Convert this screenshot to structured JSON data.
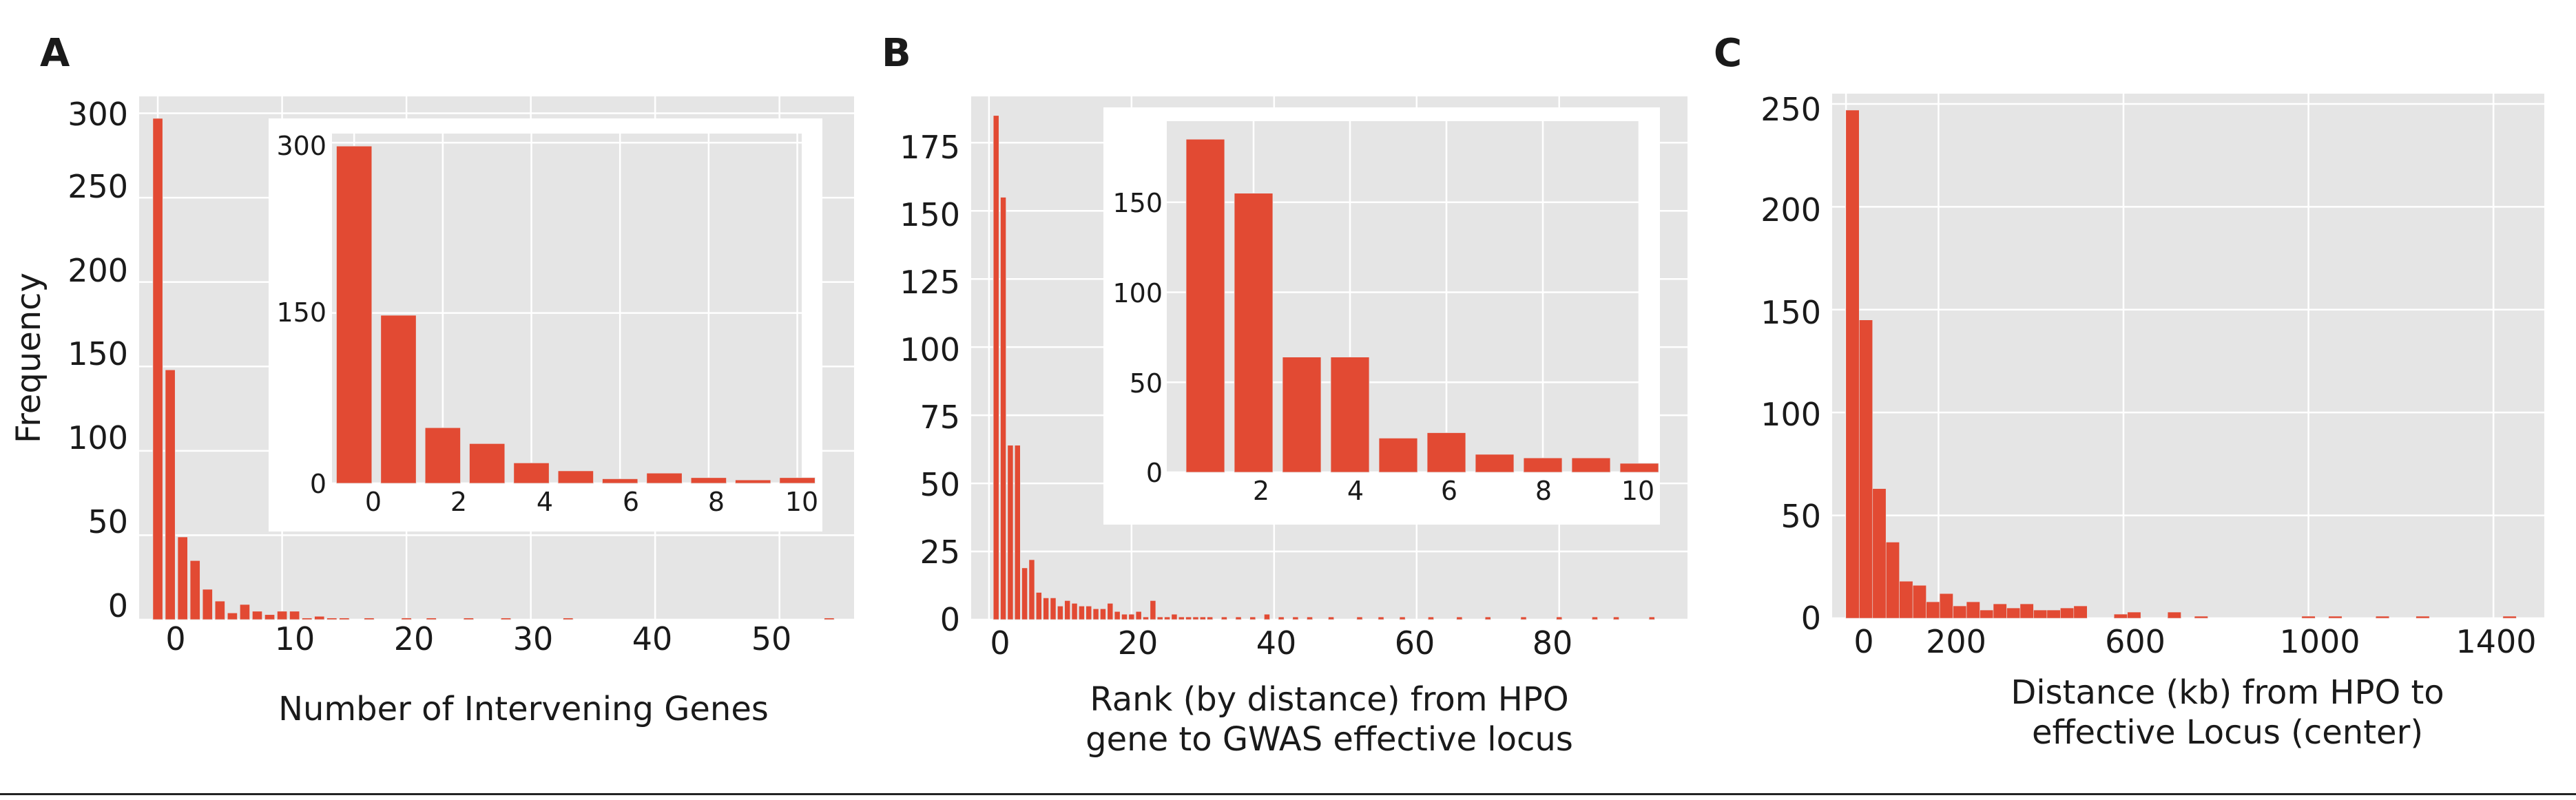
{
  "chart_data": [
    {
      "panel": "A",
      "type": "bar",
      "xlabel": "Number of Intervening Genes",
      "ylabel": "Frequency",
      "xlim": [
        -1.5,
        56
      ],
      "ylim": [
        0,
        310
      ],
      "xticks": [
        0,
        10,
        20,
        30,
        40,
        50
      ],
      "yticks": [
        0,
        50,
        100,
        150,
        200,
        250,
        300
      ],
      "x": [
        0,
        1,
        2,
        3,
        4,
        5,
        6,
        7,
        8,
        9,
        10,
        11,
        12,
        13,
        14,
        15,
        17,
        20,
        22,
        25,
        28,
        33,
        54
      ],
      "values": [
        297,
        148,
        49,
        35,
        18,
        11,
        4,
        9,
        5,
        3,
        5,
        5,
        1,
        2,
        1,
        1,
        1,
        1,
        1,
        1,
        1,
        1,
        1
      ],
      "inset": {
        "type": "bar",
        "xlim": [
          -0.5,
          10.1
        ],
        "ylim": [
          0,
          308
        ],
        "xticks": [
          0,
          2,
          4,
          6,
          8,
          10
        ],
        "yticks": [
          0,
          150,
          300
        ],
        "x": [
          0,
          1,
          2,
          3,
          4,
          5,
          6,
          7,
          8,
          9,
          10
        ],
        "values": [
          297,
          148,
          49,
          35,
          18,
          11,
          4,
          9,
          5,
          3,
          5
        ]
      }
    },
    {
      "panel": "B",
      "type": "bar",
      "xlabel": "Rank (by distance) from HPO\ngene to GWAS effective locus",
      "ylabel": "",
      "xlim": [
        -2.5,
        98
      ],
      "ylim": [
        0,
        192
      ],
      "xticks": [
        0,
        20,
        40,
        60,
        80
      ],
      "yticks": [
        0,
        25,
        50,
        75,
        100,
        125,
        150,
        175
      ],
      "x": [
        1,
        2,
        3,
        4,
        5,
        6,
        7,
        8,
        9,
        10,
        11,
        12,
        13,
        14,
        15,
        16,
        17,
        18,
        19,
        20,
        21,
        22,
        23,
        24,
        25,
        26,
        27,
        28,
        29,
        30,
        31,
        33,
        35,
        37,
        39,
        41,
        43,
        45,
        48,
        52,
        55,
        58,
        62,
        66,
        70,
        75,
        80,
        85,
        88,
        93
      ],
      "values": [
        185,
        155,
        64,
        64,
        19,
        22,
        10,
        8,
        8,
        5,
        7,
        6,
        5,
        5,
        4,
        4,
        6,
        3,
        2,
        2,
        3,
        1,
        7,
        1,
        1,
        2,
        1,
        1,
        1,
        1,
        1,
        1,
        1,
        1,
        2,
        1,
        1,
        1,
        1,
        1,
        1,
        1,
        1,
        1,
        1,
        1,
        1,
        1,
        1,
        1
      ],
      "inset": {
        "type": "bar",
        "xlim": [
          0.2,
          10.0
        ],
        "ylim": [
          0,
          195
        ],
        "xticks": [
          2,
          4,
          6,
          8,
          10
        ],
        "yticks": [
          0,
          50,
          100,
          150
        ],
        "x": [
          1,
          2,
          3,
          4,
          5,
          6,
          7,
          8,
          9,
          10
        ],
        "values": [
          185,
          155,
          64,
          64,
          19,
          22,
          10,
          8,
          8,
          5
        ]
      }
    },
    {
      "panel": "C",
      "type": "bar",
      "xlabel": "Distance (kb) from HPO to\neffective Locus (center)",
      "ylabel": "",
      "xlim": [
        -30,
        1510
      ],
      "ylim": [
        0,
        255
      ],
      "xticks": [
        0,
        200,
        600,
        1000,
        1400
      ],
      "yticks": [
        0,
        50,
        100,
        150,
        200,
        250
      ],
      "bin_width": 29,
      "x": [
        14,
        43,
        72,
        101,
        130,
        159,
        188,
        217,
        246,
        275,
        304,
        333,
        362,
        391,
        420,
        449,
        478,
        507,
        594,
        623,
        710,
        768,
        1000,
        1058,
        1160,
        1247,
        1435
      ],
      "values": [
        247,
        145,
        63,
        37,
        18,
        16,
        8,
        12,
        6,
        8,
        4,
        7,
        5,
        7,
        4,
        4,
        5,
        6,
        2,
        3,
        3,
        1,
        1,
        1,
        1,
        1,
        1
      ]
    }
  ],
  "panels": {
    "a": {
      "letter": "A",
      "xlabel": "Number of Intervening Genes",
      "ylabel": "Frequency",
      "xtick_labels": [
        "0",
        "10",
        "20",
        "30",
        "40",
        "50"
      ],
      "ytick_labels": [
        "0",
        "50",
        "100",
        "150",
        "200",
        "250",
        "300"
      ],
      "inset_xtick_labels": [
        "0",
        "2",
        "4",
        "6",
        "8",
        "10"
      ],
      "inset_ytick_labels": [
        "0",
        "150",
        "300"
      ]
    },
    "b": {
      "letter": "B",
      "xlabel_line1": "Rank (by distance) from HPO",
      "xlabel_line2": "gene to GWAS effective locus",
      "xtick_labels": [
        "0",
        "20",
        "40",
        "60",
        "80"
      ],
      "ytick_labels": [
        "0",
        "25",
        "50",
        "75",
        "100",
        "125",
        "150",
        "175"
      ],
      "inset_xtick_labels": [
        "2",
        "4",
        "6",
        "8",
        "10"
      ],
      "inset_ytick_labels": [
        "0",
        "50",
        "100",
        "150"
      ]
    },
    "c": {
      "letter": "C",
      "xlabel_line1": "Distance (kb) from HPO to",
      "xlabel_line2": "effective Locus (center)",
      "xtick_labels": [
        "0",
        "200",
        "600",
        "1000",
        "1400"
      ],
      "ytick_labels": [
        "0",
        "50",
        "100",
        "150",
        "200",
        "250"
      ]
    }
  },
  "colors": {
    "bar": "#E24A33",
    "plot_bg": "#E5E5E5",
    "grid": "#FFFFFF",
    "text": "#1A1A1A"
  }
}
